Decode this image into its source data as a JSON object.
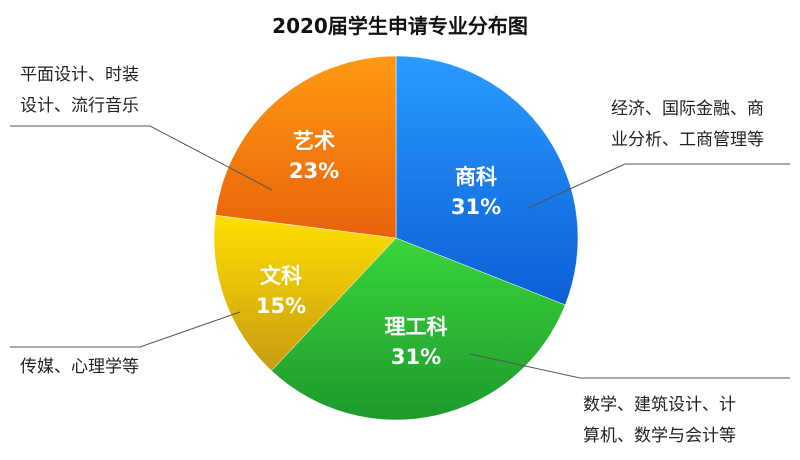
{
  "chart_data": {
    "type": "pie",
    "title": "2020届学生申请专业分布图",
    "slices": [
      {
        "label": "商科",
        "value": 31,
        "value_text": "31%",
        "color_top": "#2a9bff",
        "color_bottom": "#0b5fd6",
        "note": [
          "经济、国际金融、商",
          "业分析、工商管理等"
        ]
      },
      {
        "label": "理工科",
        "value": 31,
        "value_text": "31%",
        "color_top": "#3ad43c",
        "color_bottom": "#1d9a2b",
        "note": [
          "数学、建筑设计、计",
          "算机、数学与会计等"
        ]
      },
      {
        "label": "文科",
        "value": 15,
        "value_text": "15%",
        "color_top": "#ffe000",
        "color_bottom": "#c99a12",
        "note": [
          "传媒、心理学等"
        ]
      },
      {
        "label": "艺术",
        "value": 23,
        "value_text": "23%",
        "color_top": "#ff9a12",
        "color_bottom": "#e8620a",
        "note": [
          "平面设计、时装",
          "设计、流行音乐"
        ]
      }
    ],
    "start": "top",
    "direction": "clockwise"
  }
}
